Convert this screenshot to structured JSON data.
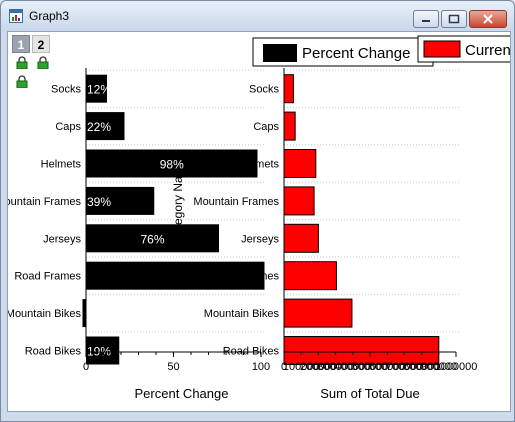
{
  "window": {
    "title": "Graph3"
  },
  "layers": {
    "tab1": "1",
    "tab2": "2"
  },
  "icons": {
    "app": "graph-window-icon",
    "minimize": "minimize-icon",
    "maximize": "maximize-icon",
    "close": "close-icon",
    "lock": "lock-icon"
  },
  "colors": {
    "black_series": "#000000",
    "red_series": "#ff0000"
  },
  "chart_data": [
    {
      "type": "bar",
      "orientation": "horizontal",
      "categories": [
        "Socks",
        "Caps",
        "Helmets",
        "Mountain Frames",
        "Jerseys",
        "Road Frames",
        "Mountain Bikes",
        "Road Bikes"
      ],
      "series": [
        {
          "name": "Percent Change",
          "values": [
            12,
            22,
            98,
            39,
            76,
            102,
            -2,
            19
          ],
          "labels": [
            "12%",
            "22%",
            "98%",
            "39%",
            "76%",
            "",
            "",
            "19%"
          ]
        }
      ],
      "xlabel": "Percent Change",
      "ylabel": "Category Na",
      "xlim": [
        0,
        100
      ],
      "xticks": [
        "0",
        "50",
        "100"
      ],
      "legend": "top",
      "grid": true
    },
    {
      "type": "bar",
      "orientation": "horizontal",
      "categories": [
        "Socks",
        "Caps",
        "Helmets",
        "Mountain Frames",
        "Jerseys",
        "Road Frames",
        "Mountain Bikes",
        "Road Bikes"
      ],
      "series": [
        {
          "name": "Curren",
          "values": [
            55000,
            65000,
            185000,
            175000,
            200000,
            305000,
            395000,
            900000
          ]
        }
      ],
      "xlabel": "Sum of Total Due",
      "xlim": [
        0,
        1000000
      ],
      "xticks": [
        "0",
        "500000",
        "1000000"
      ],
      "legend": "top-right",
      "grid": true
    }
  ]
}
